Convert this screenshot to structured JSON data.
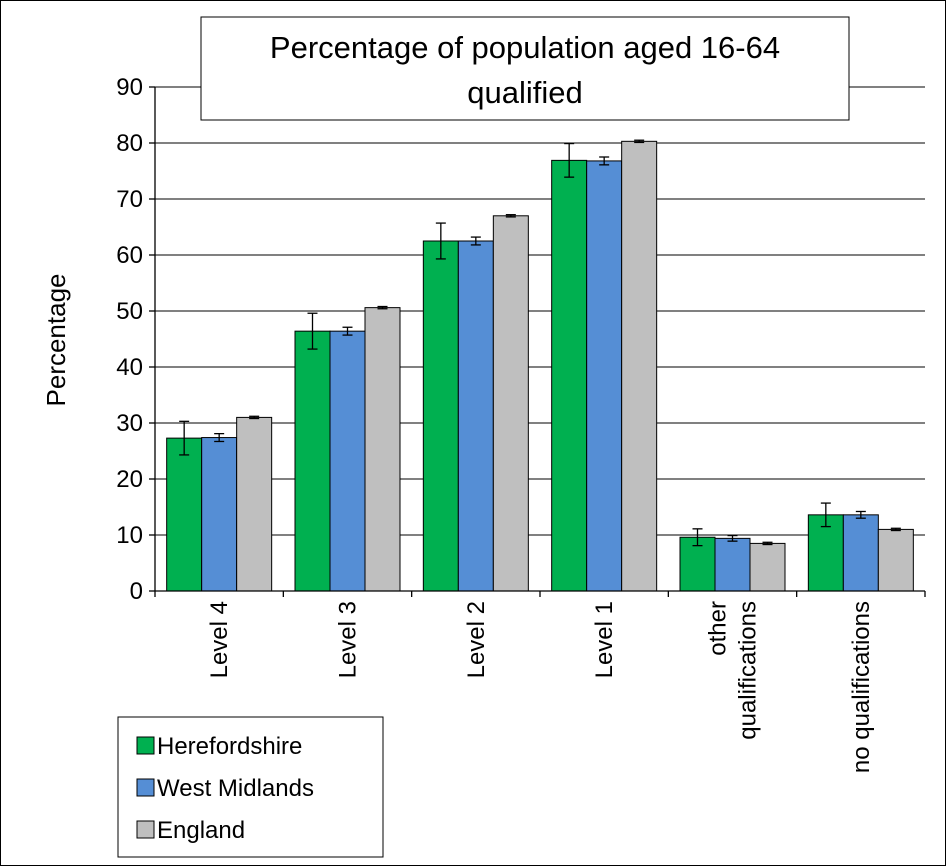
{
  "chart_data": {
    "type": "bar",
    "title": "Percentage of population aged 16-64 qualified",
    "title_lines": [
      "Percentage of population aged 16-64",
      "qualified"
    ],
    "ylabel": "Percentage",
    "xlabel": "",
    "ylim": [
      0,
      90
    ],
    "yticks": [
      0,
      10,
      20,
      30,
      40,
      50,
      60,
      70,
      80,
      90
    ],
    "grid": true,
    "legend_position": "bottom-left",
    "categories": [
      "Level 4",
      "Level 3",
      "Level 2",
      "Level 1",
      "other qualifications",
      "no qualifications"
    ],
    "category_lines": [
      [
        "Level 4"
      ],
      [
        "Level 3"
      ],
      [
        "Level 2"
      ],
      [
        "Level 1"
      ],
      [
        "other",
        "qualifications"
      ],
      [
        "no qualifications"
      ]
    ],
    "series": [
      {
        "name": "Herefordshire",
        "color": "#00b050",
        "values": [
          27.3,
          46.4,
          62.5,
          76.9,
          9.6,
          13.6
        ],
        "error": [
          3.0,
          3.2,
          3.2,
          3.0,
          1.5,
          2.1
        ]
      },
      {
        "name": "West Midlands",
        "color": "#558ed5",
        "values": [
          27.4,
          46.4,
          62.5,
          76.8,
          9.4,
          13.6
        ],
        "error": [
          0.7,
          0.7,
          0.7,
          0.7,
          0.5,
          0.6
        ]
      },
      {
        "name": "England",
        "color": "#bfbfbf",
        "values": [
          31.0,
          50.6,
          67.0,
          80.3,
          8.5,
          11.0
        ],
        "error": [
          0.2,
          0.2,
          0.2,
          0.2,
          0.2,
          0.2
        ]
      }
    ]
  }
}
